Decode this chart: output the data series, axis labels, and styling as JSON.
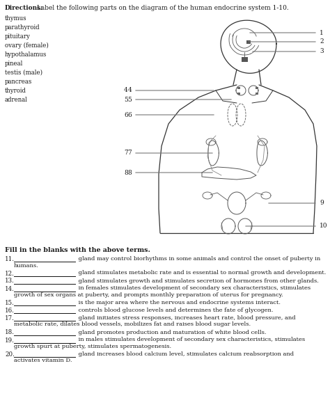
{
  "title_bold": "Directions:",
  "title_rest": " Label the following parts on the diagram of the human endocrine system 1-10.",
  "word_list": [
    "thymus",
    "parathyroid",
    "pituitary",
    "ovary (female)",
    "hypothalamus",
    "pineal",
    "testis (male)",
    "pancreas",
    "thyroid",
    "adrenal"
  ],
  "fill_header": "Fill in the blanks with the above terms.",
  "fill_items": [
    {
      "num": "11.",
      "line1": " gland may control biorhythms in some animals and control the onset of puberty in",
      "line2": "humans."
    },
    {
      "num": "12.",
      "line1": " gland stimulates metabolic rate and is essential to normal growth and development.",
      "line2": ""
    },
    {
      "num": "13.",
      "line1": " gland stimulates growth and stimulates secretion of hormones from other glands.",
      "line2": ""
    },
    {
      "num": "14.",
      "line1": " in females stimulates development of secondary sex characteristics, stimulates",
      "line2": "growth of sex organs at puberty, and prompts monthly preparation of uterus for pregnancy."
    },
    {
      "num": "15.",
      "line1": " is the major area where the nervous and endocrine systems interact.",
      "line2": ""
    },
    {
      "num": "16.",
      "line1": " controls blood glucose levels and determines the fate of glycogen.",
      "line2": ""
    },
    {
      "num": "17.",
      "line1": " gland initiates stress responses, increases heart rate, blood pressure, and",
      "line2": "metabolic rate, dilates blood vessels, mobilizes fat and raises blood sugar levels."
    },
    {
      "num": "18.",
      "line1": " gland promotes production and maturation of white blood cells.",
      "line2": ""
    },
    {
      "num": "19.",
      "line1": " in males stimulates development of secondary sex characteristics, stimulates",
      "line2": "growth spurt at puberty, stimulates spermatogenesis."
    },
    {
      "num": "20.",
      "line1": " gland increases blood calcium level, stimulates calcium reabsorption and",
      "line2": "activates vitamin D."
    }
  ],
  "bg_color": "#ffffff",
  "text_color": "#1a1a1a",
  "diagram_line_color": "#333333",
  "leader_line_color": "#777777",
  "fig_width": 4.74,
  "fig_height": 5.95,
  "dpi": 100
}
